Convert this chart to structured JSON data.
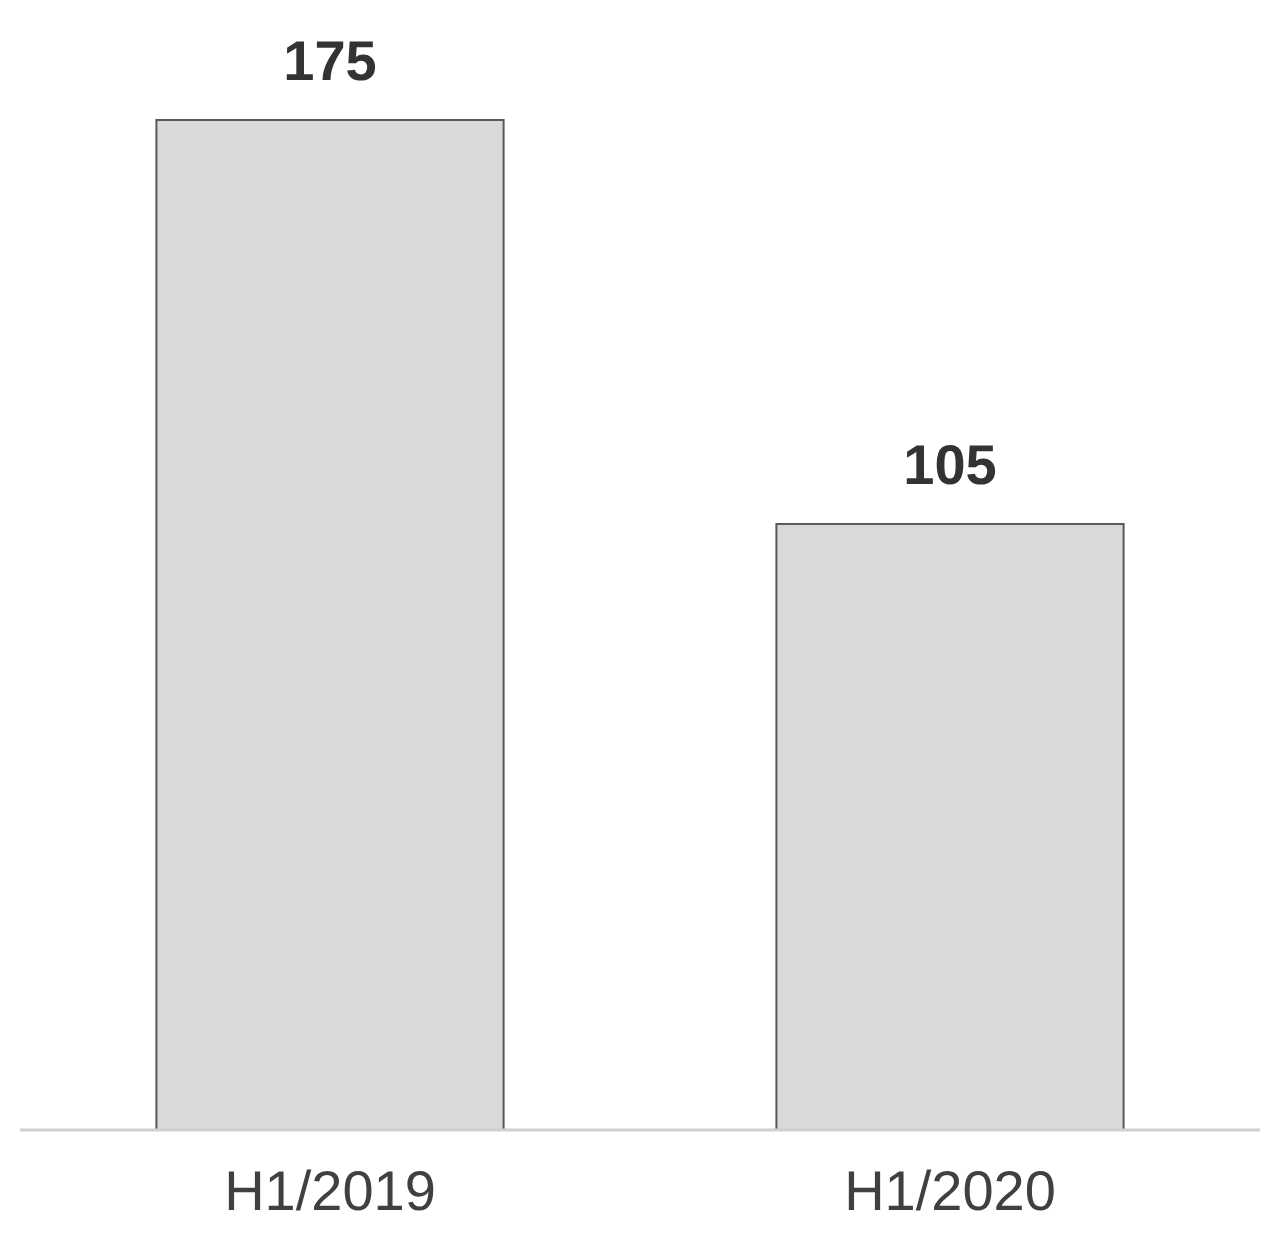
{
  "chart_data": {
    "type": "bar",
    "categories": [
      "H1/2019",
      "H1/2020"
    ],
    "values": [
      175,
      105
    ],
    "color": "#d9d9d9",
    "data_labels": true
  }
}
